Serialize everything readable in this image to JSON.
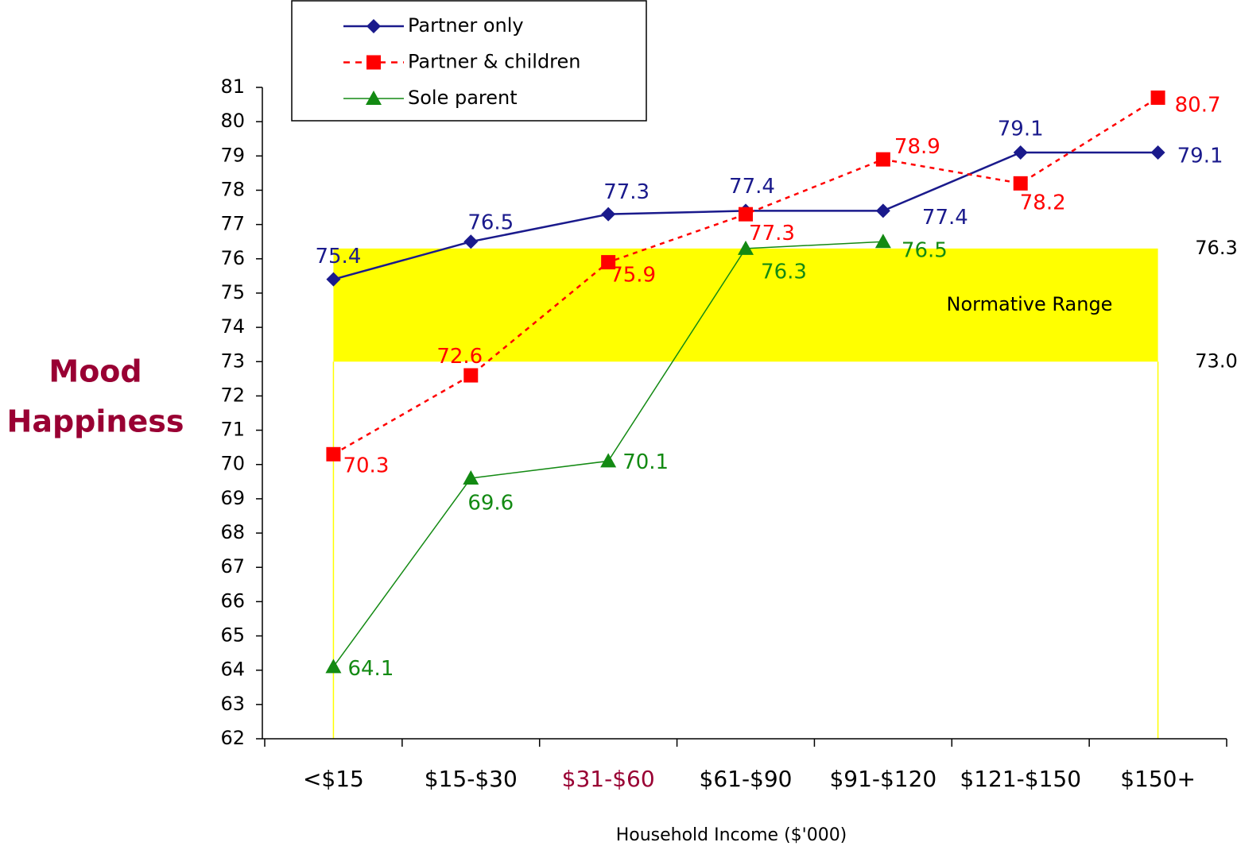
{
  "chart_data": {
    "type": "line",
    "ylabel": [
      "Mood",
      "Happiness"
    ],
    "ylabel_color": "#990033",
    "xlabel": "Household Income ($'000)",
    "categories": [
      "<$15",
      "$15-$30",
      "$31-$60",
      "$61-$90",
      "$91-$120",
      "$121-$150",
      "$150+"
    ],
    "highlight_category": {
      "index": 2,
      "color": "#990033"
    },
    "ylim": [
      62,
      81
    ],
    "yticks": [
      62,
      63,
      64,
      65,
      66,
      67,
      68,
      69,
      70,
      71,
      72,
      73,
      74,
      75,
      76,
      77,
      78,
      79,
      80,
      81
    ],
    "series": [
      {
        "name": "Partner only",
        "color": "#1a1a8c",
        "marker": "diamond",
        "dashed": false,
        "values": [
          75.4,
          76.5,
          77.3,
          77.4,
          77.4,
          79.1,
          79.1
        ]
      },
      {
        "name": "Partner & children",
        "color": "#ff0000",
        "marker": "square",
        "dashed": true,
        "values": [
          70.3,
          72.6,
          75.9,
          77.3,
          78.9,
          78.2,
          80.7
        ]
      },
      {
        "name": "Sole parent",
        "color": "#138a13",
        "marker": "triangle",
        "dashed": false,
        "values": [
          64.1,
          69.6,
          70.1,
          76.3,
          76.5,
          null,
          null
        ]
      }
    ],
    "normative_range": {
      "label": "Normative Range",
      "color": "#ffff00",
      "values": [
        73.0,
        76.3
      ],
      "value_labels": [
        "73.0",
        "76.3"
      ]
    }
  }
}
